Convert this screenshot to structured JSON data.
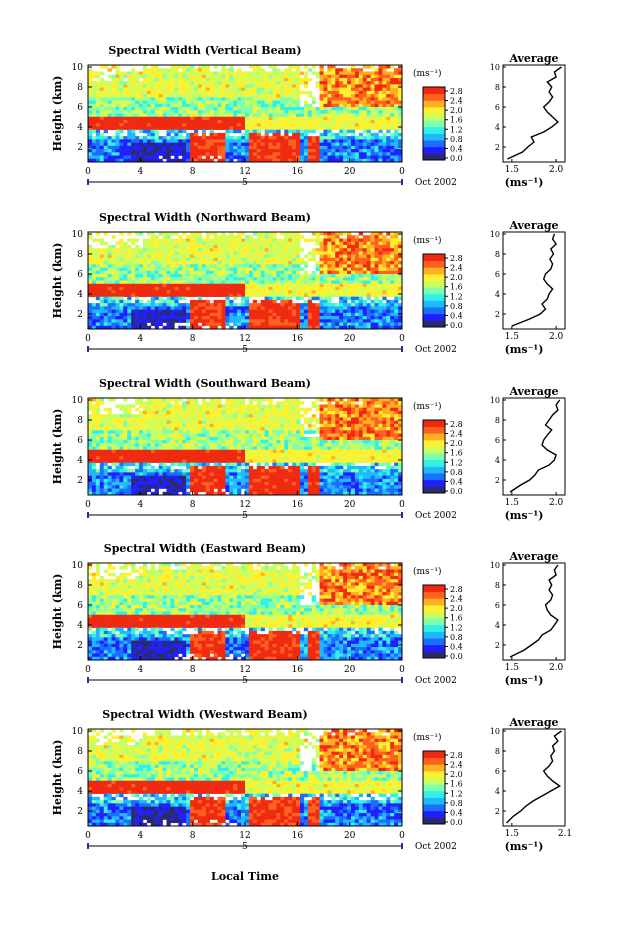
{
  "figure": {
    "x_label": "Local Time",
    "y_label": "Height (km)",
    "date_label": "Oct 2002",
    "day_label": "5",
    "units_label": "(ms⁻¹)",
    "average_title": "Average",
    "x_ticks": [
      "0",
      "4",
      "8",
      "12",
      "16",
      "20",
      "0"
    ],
    "y_ticks": [
      "2",
      "4",
      "6",
      "8",
      "10"
    ],
    "colorbar_ticks": [
      "0.0",
      "0.4",
      "0.8",
      "1.2",
      "1.6",
      "2.0",
      "2.4",
      "2.8"
    ],
    "colorbar_colors": [
      "#2a2a6e",
      "#2020ff",
      "#1a6fff",
      "#20b8ff",
      "#30f0e8",
      "#7cffb0",
      "#c8ff60",
      "#fff030",
      "#ffb020",
      "#ff6020",
      "#f02a10"
    ]
  },
  "panels": [
    {
      "title": "Spectral Width (Vertical Beam)",
      "avg_x_ticks": [
        "1.5",
        "2.0"
      ]
    },
    {
      "title": "Spectral Width (Northward Beam)",
      "avg_x_ticks": [
        "1.5",
        "2.0"
      ]
    },
    {
      "title": "Spectral Width (Southward Beam)",
      "avg_x_ticks": [
        "1.5",
        "2.0"
      ]
    },
    {
      "title": "Spectral Width (Eastward Beam)",
      "avg_x_ticks": [
        "1.5",
        "2.0"
      ]
    },
    {
      "title": "Spectral Width (Westward Beam)",
      "avg_x_ticks": [
        "1.5",
        "2.1"
      ]
    }
  ],
  "chart_data": [
    {
      "type": "heatmap",
      "title": "Spectral Width (Vertical Beam)",
      "xlabel": "",
      "ylabel": "Height (km)",
      "xlim": [
        0,
        24
      ],
      "ylim": [
        0.5,
        10.2
      ],
      "colorbar_range": [
        0,
        3.0
      ],
      "average_profile": {
        "xlim": [
          1.4,
          2.1
        ],
        "heights": [
          0.8,
          1.5,
          2.0,
          2.5,
          3.0,
          3.5,
          4.0,
          4.5,
          5.0,
          5.5,
          6.0,
          6.5,
          7.0,
          7.5,
          8.0,
          8.5,
          9.0,
          9.5,
          10.0
        ],
        "values": [
          1.45,
          1.62,
          1.68,
          1.75,
          1.72,
          1.86,
          1.95,
          2.02,
          1.96,
          1.9,
          1.86,
          1.92,
          1.96,
          1.92,
          1.95,
          1.9,
          2.0,
          1.98,
          2.06
        ]
      }
    },
    {
      "type": "heatmap",
      "title": "Spectral Width (Northward Beam)",
      "xlabel": "",
      "ylabel": "Height (km)",
      "xlim": [
        0,
        24
      ],
      "ylim": [
        0.5,
        10.2
      ],
      "colorbar_range": [
        0,
        3.0
      ],
      "average_profile": {
        "xlim": [
          1.4,
          2.1
        ],
        "heights": [
          0.8,
          1.5,
          2.0,
          2.5,
          3.0,
          3.5,
          4.0,
          4.5,
          5.0,
          5.5,
          6.0,
          6.5,
          7.0,
          7.5,
          8.0,
          8.5,
          9.0,
          9.5,
          10.0
        ],
        "values": [
          1.5,
          1.7,
          1.82,
          1.88,
          1.84,
          1.9,
          1.92,
          1.96,
          1.9,
          1.86,
          1.88,
          1.94,
          1.96,
          1.93,
          1.97,
          1.94,
          2.0,
          1.96,
          1.98
        ]
      }
    },
    {
      "type": "heatmap",
      "title": "Spectral Width (Southward Beam)",
      "xlabel": "",
      "ylabel": "Height (km)",
      "xlim": [
        0,
        24
      ],
      "ylim": [
        0.5,
        10.2
      ],
      "colorbar_range": [
        0,
        3.0
      ],
      "average_profile": {
        "xlim": [
          1.4,
          2.1
        ],
        "heights": [
          0.8,
          1.5,
          2.0,
          2.5,
          3.0,
          3.5,
          4.0,
          4.5,
          5.0,
          5.5,
          6.0,
          6.5,
          7.0,
          7.5,
          8.0,
          8.5,
          9.0,
          9.5,
          10.0
        ],
        "values": [
          1.48,
          1.6,
          1.7,
          1.76,
          1.8,
          1.92,
          1.98,
          2.0,
          1.9,
          1.84,
          1.86,
          1.9,
          1.95,
          1.88,
          1.92,
          1.96,
          2.02,
          2.0,
          2.04
        ]
      }
    },
    {
      "type": "heatmap",
      "title": "Spectral Width (Eastward Beam)",
      "xlabel": "",
      "ylabel": "Height (km)",
      "xlim": [
        0,
        24
      ],
      "ylim": [
        0.5,
        10.2
      ],
      "colorbar_range": [
        0,
        3.0
      ],
      "average_profile": {
        "xlim": [
          1.4,
          2.1
        ],
        "heights": [
          0.8,
          1.5,
          2.0,
          2.5,
          3.0,
          3.5,
          4.0,
          4.5,
          5.0,
          5.5,
          6.0,
          6.5,
          7.0,
          7.5,
          8.0,
          8.5,
          9.0,
          9.5,
          10.0
        ],
        "values": [
          1.48,
          1.64,
          1.72,
          1.8,
          1.84,
          1.94,
          1.98,
          2.02,
          1.94,
          1.9,
          1.88,
          1.94,
          1.96,
          1.92,
          1.95,
          1.92,
          2.0,
          1.98,
          2.02
        ]
      }
    },
    {
      "type": "heatmap",
      "title": "Spectral Width (Westward Beam)",
      "xlabel": "Local Time",
      "ylabel": "Height (km)",
      "xlim": [
        0,
        24
      ],
      "ylim": [
        0.5,
        10.2
      ],
      "colorbar_range": [
        0,
        3.0
      ],
      "average_profile": {
        "xlim": [
          1.4,
          2.1
        ],
        "heights": [
          0.8,
          1.5,
          2.0,
          2.5,
          3.0,
          3.5,
          4.0,
          4.5,
          5.0,
          5.5,
          6.0,
          6.5,
          7.0,
          7.5,
          8.0,
          8.5,
          9.0,
          9.5,
          10.0
        ],
        "values": [
          1.44,
          1.52,
          1.6,
          1.66,
          1.74,
          1.84,
          1.94,
          2.04,
          1.96,
          1.9,
          1.86,
          1.92,
          1.96,
          1.94,
          1.98,
          1.96,
          2.02,
          1.98,
          2.06
        ]
      }
    }
  ]
}
